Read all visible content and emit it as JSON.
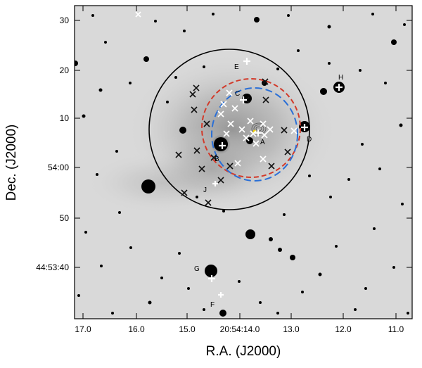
{
  "figure": {
    "x_axis_title": "R.A. (J2000)",
    "y_axis_title": "Dec. (J2000)",
    "x_ticks": [
      "17.0",
      "16.0",
      "15.0",
      "20:54:14.0",
      "13.0",
      "12.0",
      "11.0"
    ],
    "y_ticks": [
      "30",
      "20",
      "10",
      "54:00",
      "50",
      "44:53:40"
    ],
    "star_labels": [
      "A",
      "B",
      "C",
      "D",
      "E",
      "F",
      "G",
      "H",
      "J"
    ]
  },
  "colors": {
    "sky_background": "#d9d9d9",
    "frame": "#000000",
    "large_circle": "#000000",
    "red_dashed_circle": "#d23a2a",
    "blue_dashed_circle": "#2a6fd6",
    "white_cross": "#ffffff",
    "black_cross": "#111111",
    "center_dot": "#f2d40a"
  }
}
